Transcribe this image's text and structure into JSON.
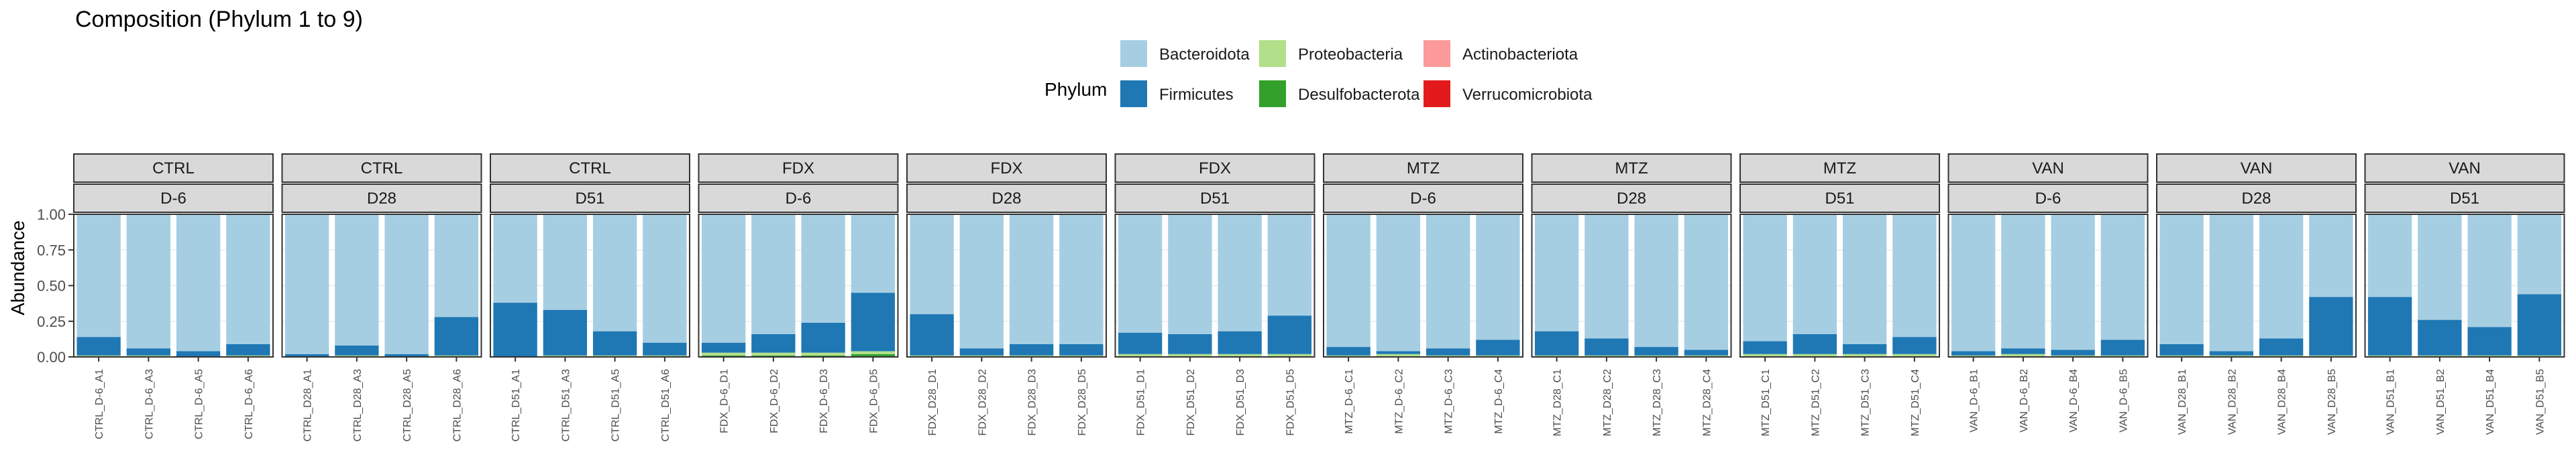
{
  "chart_data": {
    "type": "bar",
    "stacked": true,
    "title": "Composition (Phylum 1 to 9)",
    "ylabel": "Abundance",
    "xlabel": "",
    "ylim": [
      0,
      1
    ],
    "yticks": [
      "0.00",
      "0.25",
      "0.50",
      "0.75",
      "1.00"
    ],
    "yticks_values": [
      0,
      0.25,
      0.5,
      0.75,
      1
    ],
    "grid": true,
    "legend": {
      "title": "Phylum",
      "position": "top",
      "entries": [
        {
          "name": "Bacteroidota",
          "color": "#a6cee3"
        },
        {
          "name": "Firmicutes",
          "color": "#1f78b4"
        },
        {
          "name": "Proteobacteria",
          "color": "#b2df8a"
        },
        {
          "name": "Desulfobacterota",
          "color": "#33a02c"
        },
        {
          "name": "Actinobacteriota",
          "color": "#fb9a99"
        },
        {
          "name": "Verrucomicrobiota",
          "color": "#e31a1c"
        }
      ]
    },
    "panels": [
      {
        "group": "CTRL",
        "day": "D-6",
        "samples": [
          "CTRL_D-6_A1",
          "CTRL_D-6_A3",
          "CTRL_D-6_A5",
          "CTRL_D-6_A6"
        ],
        "bacteroidota": [
          0.86,
          0.94,
          0.96,
          0.91
        ],
        "firmicutes": [
          0.13,
          0.05,
          0.04,
          0.08
        ],
        "proteobacteria": [
          0.01,
          0.01,
          0.0,
          0.01
        ],
        "desulfobacterota": [
          0.0,
          0.0,
          0.0,
          0.0
        ]
      },
      {
        "group": "CTRL",
        "day": "D28",
        "samples": [
          "CTRL_D28_A1",
          "CTRL_D28_A3",
          "CTRL_D28_A5",
          "CTRL_D28_A6"
        ],
        "bacteroidota": [
          0.98,
          0.92,
          0.98,
          0.72
        ],
        "firmicutes": [
          0.02,
          0.07,
          0.02,
          0.27
        ],
        "proteobacteria": [
          0.0,
          0.01,
          0.0,
          0.01
        ],
        "desulfobacterota": [
          0.0,
          0.0,
          0.0,
          0.0
        ]
      },
      {
        "group": "CTRL",
        "day": "D51",
        "samples": [
          "CTRL_D51_A1",
          "CTRL_D51_A3",
          "CTRL_D51_A5",
          "CTRL_D51_A6"
        ],
        "bacteroidota": [
          0.62,
          0.67,
          0.82,
          0.9
        ],
        "firmicutes": [
          0.38,
          0.32,
          0.17,
          0.09
        ],
        "proteobacteria": [
          0.0,
          0.01,
          0.01,
          0.01
        ],
        "desulfobacterota": [
          0.0,
          0.0,
          0.0,
          0.0
        ]
      },
      {
        "group": "FDX",
        "day": "D-6",
        "samples": [
          "FDX_D-6_D1",
          "FDX_D-6_D2",
          "FDX_D-6_D3",
          "FDX_D-6_D5"
        ],
        "bacteroidota": [
          0.9,
          0.84,
          0.76,
          0.55
        ],
        "firmicutes": [
          0.07,
          0.13,
          0.21,
          0.41
        ],
        "proteobacteria": [
          0.02,
          0.02,
          0.02,
          0.02
        ],
        "desulfobacterota": [
          0.01,
          0.01,
          0.01,
          0.02
        ]
      },
      {
        "group": "FDX",
        "day": "D28",
        "samples": [
          "FDX_D28_D1",
          "FDX_D28_D2",
          "FDX_D28_D3",
          "FDX_D28_D5"
        ],
        "bacteroidota": [
          0.7,
          0.94,
          0.91,
          0.91
        ],
        "firmicutes": [
          0.29,
          0.05,
          0.08,
          0.08
        ],
        "proteobacteria": [
          0.01,
          0.01,
          0.01,
          0.01
        ],
        "desulfobacterota": [
          0.0,
          0.0,
          0.0,
          0.0
        ]
      },
      {
        "group": "FDX",
        "day": "D51",
        "samples": [
          "FDX_D51_D1",
          "FDX_D51_D2",
          "FDX_D51_D3",
          "FDX_D51_D5"
        ],
        "bacteroidota": [
          0.83,
          0.84,
          0.82,
          0.71
        ],
        "firmicutes": [
          0.15,
          0.14,
          0.16,
          0.27
        ],
        "proteobacteria": [
          0.02,
          0.02,
          0.02,
          0.02
        ],
        "desulfobacterota": [
          0.0,
          0.0,
          0.0,
          0.0
        ]
      },
      {
        "group": "MTZ",
        "day": "D-6",
        "samples": [
          "MTZ_D-6_C1",
          "MTZ_D-6_C2",
          "MTZ_D-6_C3",
          "MTZ_D-6_C4"
        ],
        "bacteroidota": [
          0.93,
          0.96,
          0.94,
          0.88
        ],
        "firmicutes": [
          0.06,
          0.02,
          0.05,
          0.11
        ],
        "proteobacteria": [
          0.01,
          0.02,
          0.01,
          0.01
        ],
        "desulfobacterota": [
          0.0,
          0.0,
          0.0,
          0.0
        ]
      },
      {
        "group": "MTZ",
        "day": "D28",
        "samples": [
          "MTZ_D28_C1",
          "MTZ_D28_C2",
          "MTZ_D28_C3",
          "MTZ_D28_C4"
        ],
        "bacteroidota": [
          0.82,
          0.87,
          0.93,
          0.95
        ],
        "firmicutes": [
          0.17,
          0.12,
          0.06,
          0.04
        ],
        "proteobacteria": [
          0.01,
          0.01,
          0.01,
          0.01
        ],
        "desulfobacterota": [
          0.0,
          0.0,
          0.0,
          0.0
        ]
      },
      {
        "group": "MTZ",
        "day": "D51",
        "samples": [
          "MTZ_D51_C1",
          "MTZ_D51_C2",
          "MTZ_D51_C3",
          "MTZ_D51_C4"
        ],
        "bacteroidota": [
          0.89,
          0.84,
          0.91,
          0.86
        ],
        "firmicutes": [
          0.09,
          0.14,
          0.07,
          0.12
        ],
        "proteobacteria": [
          0.02,
          0.02,
          0.02,
          0.02
        ],
        "desulfobacterota": [
          0.0,
          0.0,
          0.0,
          0.0
        ]
      },
      {
        "group": "VAN",
        "day": "D-6",
        "samples": [
          "VAN_D-6_B1",
          "VAN_D-6_B2",
          "VAN_D-6_B4",
          "VAN_D-6_B5"
        ],
        "bacteroidota": [
          0.96,
          0.94,
          0.95,
          0.88
        ],
        "firmicutes": [
          0.03,
          0.04,
          0.04,
          0.11
        ],
        "proteobacteria": [
          0.01,
          0.02,
          0.01,
          0.01
        ],
        "desulfobacterota": [
          0.0,
          0.0,
          0.0,
          0.0
        ]
      },
      {
        "group": "VAN",
        "day": "D28",
        "samples": [
          "VAN_D28_B1",
          "VAN_D28_B2",
          "VAN_D28_B4",
          "VAN_D28_B5"
        ],
        "bacteroidota": [
          0.91,
          0.96,
          0.87,
          0.58
        ],
        "firmicutes": [
          0.08,
          0.03,
          0.12,
          0.41
        ],
        "proteobacteria": [
          0.01,
          0.01,
          0.01,
          0.01
        ],
        "desulfobacterota": [
          0.0,
          0.0,
          0.0,
          0.0
        ]
      },
      {
        "group": "VAN",
        "day": "D51",
        "samples": [
          "VAN_D51_B1",
          "VAN_D51_B2",
          "VAN_D51_B4",
          "VAN_D51_B5"
        ],
        "bacteroidota": [
          0.58,
          0.74,
          0.79,
          0.56
        ],
        "firmicutes": [
          0.41,
          0.25,
          0.2,
          0.43
        ],
        "proteobacteria": [
          0.01,
          0.01,
          0.01,
          0.01
        ],
        "desulfobacterota": [
          0.0,
          0.0,
          0.0,
          0.0
        ]
      }
    ]
  }
}
